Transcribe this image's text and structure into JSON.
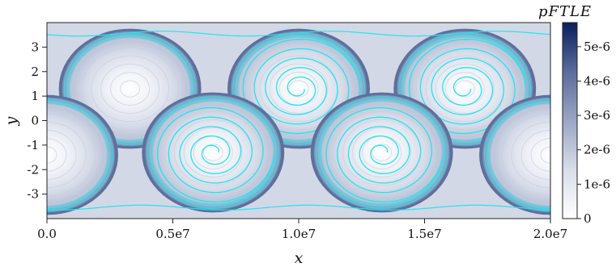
{
  "chart_data": {
    "type": "heatmap",
    "title": "",
    "xlabel": "x",
    "ylabel": "y",
    "xlim": [
      0,
      20000000
    ],
    "ylim": [
      -4,
      4
    ],
    "x_ticks": [
      {
        "value": 0,
        "label": "0.0"
      },
      {
        "value": 5000000,
        "label": "0.5e7"
      },
      {
        "value": 10000000,
        "label": "1.0e7"
      },
      {
        "value": 15000000,
        "label": "1.5e7"
      },
      {
        "value": 20000000,
        "label": "2.0e7"
      }
    ],
    "y_ticks": [
      {
        "value": 3,
        "label": "3"
      },
      {
        "value": 2,
        "label": "2"
      },
      {
        "value": 1,
        "label": "1"
      },
      {
        "value": 0,
        "label": "0"
      },
      {
        "value": -1,
        "label": "-1"
      },
      {
        "value": -2,
        "label": "-2"
      },
      {
        "value": -3,
        "label": "-3"
      }
    ],
    "colorbar": {
      "title": "pFTLE",
      "range": [
        0,
        5.7e-06
      ],
      "ticks": [
        {
          "value": 0,
          "label": "0"
        },
        {
          "value": 1e-06,
          "label": "1e-6"
        },
        {
          "value": 2e-06,
          "label": "2e-6"
        },
        {
          "value": 3e-06,
          "label": "3e-6"
        },
        {
          "value": 4e-06,
          "label": "4e-6"
        },
        {
          "value": 5e-06,
          "label": "5e-6"
        }
      ],
      "colors": [
        "#ffffff",
        "#d8dde9",
        "#9aa6c4",
        "#5a6c9c",
        "#0b1f5c"
      ]
    },
    "vortices": [
      {
        "x": 3300000,
        "y": 1.3,
        "row": "top",
        "has_spiral": false
      },
      {
        "x": 10000000,
        "y": 1.3,
        "row": "top",
        "has_spiral": true
      },
      {
        "x": 16600000,
        "y": 1.3,
        "row": "top",
        "has_spiral": true
      },
      {
        "x": 0,
        "y": -1.4,
        "row": "bottom",
        "has_spiral": false
      },
      {
        "x": 6600000,
        "y": -1.3,
        "row": "bottom",
        "has_spiral": true
      },
      {
        "x": 13300000,
        "y": -1.3,
        "row": "bottom",
        "has_spiral": true
      },
      {
        "x": 20000000,
        "y": -1.4,
        "row": "bottom",
        "has_spiral": false
      }
    ],
    "streak_color": "#22e4ee",
    "grid": false
  }
}
